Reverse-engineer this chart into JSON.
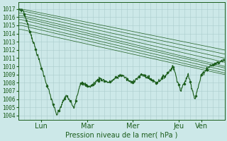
{
  "title": "Pression niveau de la mer( hPa )",
  "ylabel_values": [
    1004,
    1005,
    1006,
    1007,
    1008,
    1009,
    1010,
    1011,
    1012,
    1013,
    1014,
    1015,
    1016,
    1017
  ],
  "ylim": [
    1003.5,
    1017.8
  ],
  "day_labels": [
    "Lun",
    "Mar",
    "Mer",
    "Jeu",
    "Ven"
  ],
  "day_ticks": [
    24,
    72,
    120,
    168,
    192
  ],
  "xlim": [
    0,
    216
  ],
  "background_color": "#cce8e8",
  "grid_color": "#aacccc",
  "line_color": "#1a5c1a",
  "title_fontsize": 7,
  "tick_fontsize": 5.5,
  "xlabel_fontsize": 7,
  "ensemble_starts": [
    1017.0,
    1016.8,
    1016.5,
    1016.2,
    1016.0,
    1015.7,
    1015.3,
    1015.0,
    1014.5
  ],
  "ensemble_ends": [
    1012.0,
    1011.5,
    1011.0,
    1010.5,
    1010.0,
    1009.8,
    1009.5,
    1009.2,
    1009.0
  ]
}
